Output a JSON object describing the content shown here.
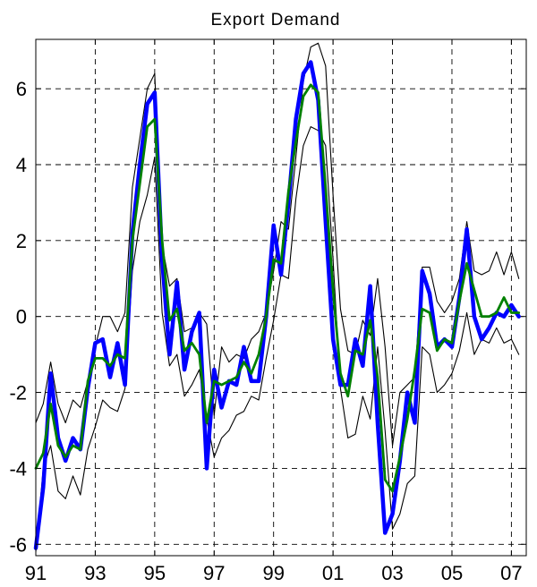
{
  "chart_data": {
    "type": "line",
    "title": "Export Demand",
    "xlabel": "",
    "ylabel": "",
    "xlim": [
      1991,
      2007.5
    ],
    "ylim": [
      -6.3,
      7.3
    ],
    "x_ticks": [
      1991,
      1993,
      1995,
      1997,
      1999,
      2001,
      2003,
      2005,
      2007
    ],
    "x_tick_labels": [
      "91",
      "93",
      "95",
      "97",
      "99",
      "01",
      "03",
      "05",
      "07"
    ],
    "y_ticks": [
      -6,
      -4,
      -2,
      0,
      2,
      4,
      6
    ],
    "y_tick_labels": [
      "-6",
      "-4",
      "-2",
      "0",
      "2",
      "4",
      "6"
    ],
    "grid": true,
    "legend": "none",
    "colors": {
      "blue": "#0000ff",
      "green": "#008000",
      "band": "#000000"
    },
    "x": [
      1991,
      1991.25,
      1991.5,
      1991.75,
      1992,
      1992.25,
      1992.5,
      1992.75,
      1993,
      1993.25,
      1993.5,
      1993.75,
      1994,
      1994.25,
      1994.5,
      1994.75,
      1995,
      1995.25,
      1995.5,
      1995.75,
      1996,
      1996.25,
      1996.5,
      1996.75,
      1997,
      1997.25,
      1997.5,
      1997.75,
      1998,
      1998.25,
      1998.5,
      1998.75,
      1999,
      1999.25,
      1999.5,
      1999.75,
      2000,
      2000.25,
      2000.5,
      2000.75,
      2001,
      2001.25,
      2001.5,
      2001.75,
      2002,
      2002.25,
      2002.5,
      2002.75,
      2003,
      2003.25,
      2003.5,
      2003.75,
      2004,
      2004.25,
      2004.5,
      2004.75,
      2005,
      2005.25,
      2005.5,
      2005.75,
      2006,
      2006.25,
      2006.5,
      2006.75,
      2007,
      2007.25
    ],
    "series": [
      {
        "role": "upper_band",
        "color": "#000000",
        "values": [
          -2.8,
          -2.3,
          -1.2,
          -2.3,
          -2.8,
          -2.2,
          -2.4,
          -1.7,
          -0.8,
          0.0,
          0.0,
          -0.4,
          0.1,
          3.4,
          4.7,
          6.0,
          6.4,
          1.9,
          0.8,
          1.0,
          -0.4,
          -0.3,
          0.1,
          -0.2,
          -2.6,
          -0.8,
          -1.2,
          -1.0,
          -1.1,
          -0.6,
          -0.4,
          0.1,
          1.2,
          2.5,
          2.3,
          4.2,
          6.2,
          7.1,
          7.2,
          6.6,
          3.2,
          0.2,
          -0.9,
          -1.0,
          -0.1,
          -0.5,
          1.0,
          -0.8,
          -3.4,
          -2.0,
          -1.8,
          -1.6,
          1.3,
          1.3,
          0.4,
          0.1,
          0.4,
          1.0,
          2.5,
          1.2,
          1.1,
          1.2,
          1.7,
          1.1,
          1.7,
          1.0
        ]
      },
      {
        "role": "lower_band",
        "color": "#000000",
        "values": [
          -6.2,
          -4.0,
          -3.4,
          -4.6,
          -4.8,
          -4.2,
          -4.7,
          -3.5,
          -2.9,
          -2.2,
          -2.4,
          -2.5,
          -1.9,
          1.2,
          2.5,
          3.2,
          4.2,
          0.1,
          -1.3,
          -1.0,
          -2.1,
          -1.8,
          -1.4,
          -2.7,
          -3.7,
          -3.2,
          -3.0,
          -2.6,
          -2.5,
          -2.1,
          -2.2,
          -1.1,
          -0.1,
          1.1,
          1.0,
          3.1,
          4.5,
          5.0,
          4.9,
          4.5,
          1.5,
          -1.9,
          -3.2,
          -3.1,
          -2.1,
          -2.7,
          -0.8,
          -3.0,
          -5.6,
          -5.2,
          -4.4,
          -4.2,
          -0.8,
          -1.0,
          -2.0,
          -1.8,
          -1.5,
          -0.9,
          0.1,
          -1.0,
          -0.6,
          -0.7,
          -0.3,
          -0.7,
          -0.6,
          -1.0
        ]
      },
      {
        "role": "estimate_blue",
        "color": "#0000ff",
        "values": [
          -6.1,
          -4.5,
          -1.5,
          -3.2,
          -3.8,
          -3.2,
          -3.5,
          -1.9,
          -0.7,
          -0.6,
          -1.6,
          -0.7,
          -1.8,
          2.2,
          4.0,
          5.6,
          5.9,
          1.5,
          -1.0,
          0.9,
          -1.4,
          -0.4,
          0.1,
          -4.0,
          -1.4,
          -2.4,
          -1.7,
          -1.8,
          -0.8,
          -1.7,
          -1.7,
          0.0,
          2.4,
          1.1,
          3.0,
          5.2,
          6.4,
          6.7,
          5.7,
          2.5,
          -0.6,
          -1.8,
          -1.8,
          -0.6,
          -1.3,
          0.8,
          -2.8,
          -5.7,
          -5.2,
          -3.8,
          -2.0,
          -2.8,
          1.2,
          0.6,
          -0.8,
          -0.6,
          -0.8,
          0.5,
          2.3,
          0.0,
          -0.6,
          -0.3,
          0.1,
          0.0,
          0.3,
          0.0
        ]
      },
      {
        "role": "estimate_green",
        "color": "#008000",
        "values": [
          -4.0,
          -3.6,
          -2.3,
          -3.4,
          -3.7,
          -3.4,
          -3.5,
          -1.7,
          -1.1,
          -1.1,
          -1.3,
          -1.0,
          -1.1,
          2.0,
          3.5,
          5.0,
          5.2,
          2.0,
          -0.1,
          0.2,
          -0.9,
          -0.7,
          -1.0,
          -2.8,
          -1.7,
          -1.8,
          -1.7,
          -1.6,
          -1.2,
          -1.5,
          -1.0,
          0.0,
          1.5,
          1.4,
          3.3,
          4.6,
          5.8,
          6.1,
          5.9,
          3.4,
          0.7,
          -1.5,
          -2.1,
          -0.9,
          -1.0,
          -0.1,
          -1.6,
          -4.3,
          -4.6,
          -3.7,
          -2.7,
          -1.4,
          0.2,
          0.1,
          -0.9,
          -0.6,
          -0.7,
          0.4,
          1.4,
          0.7,
          0.0,
          0.0,
          0.1,
          0.5,
          0.1,
          0.1
        ]
      }
    ]
  }
}
